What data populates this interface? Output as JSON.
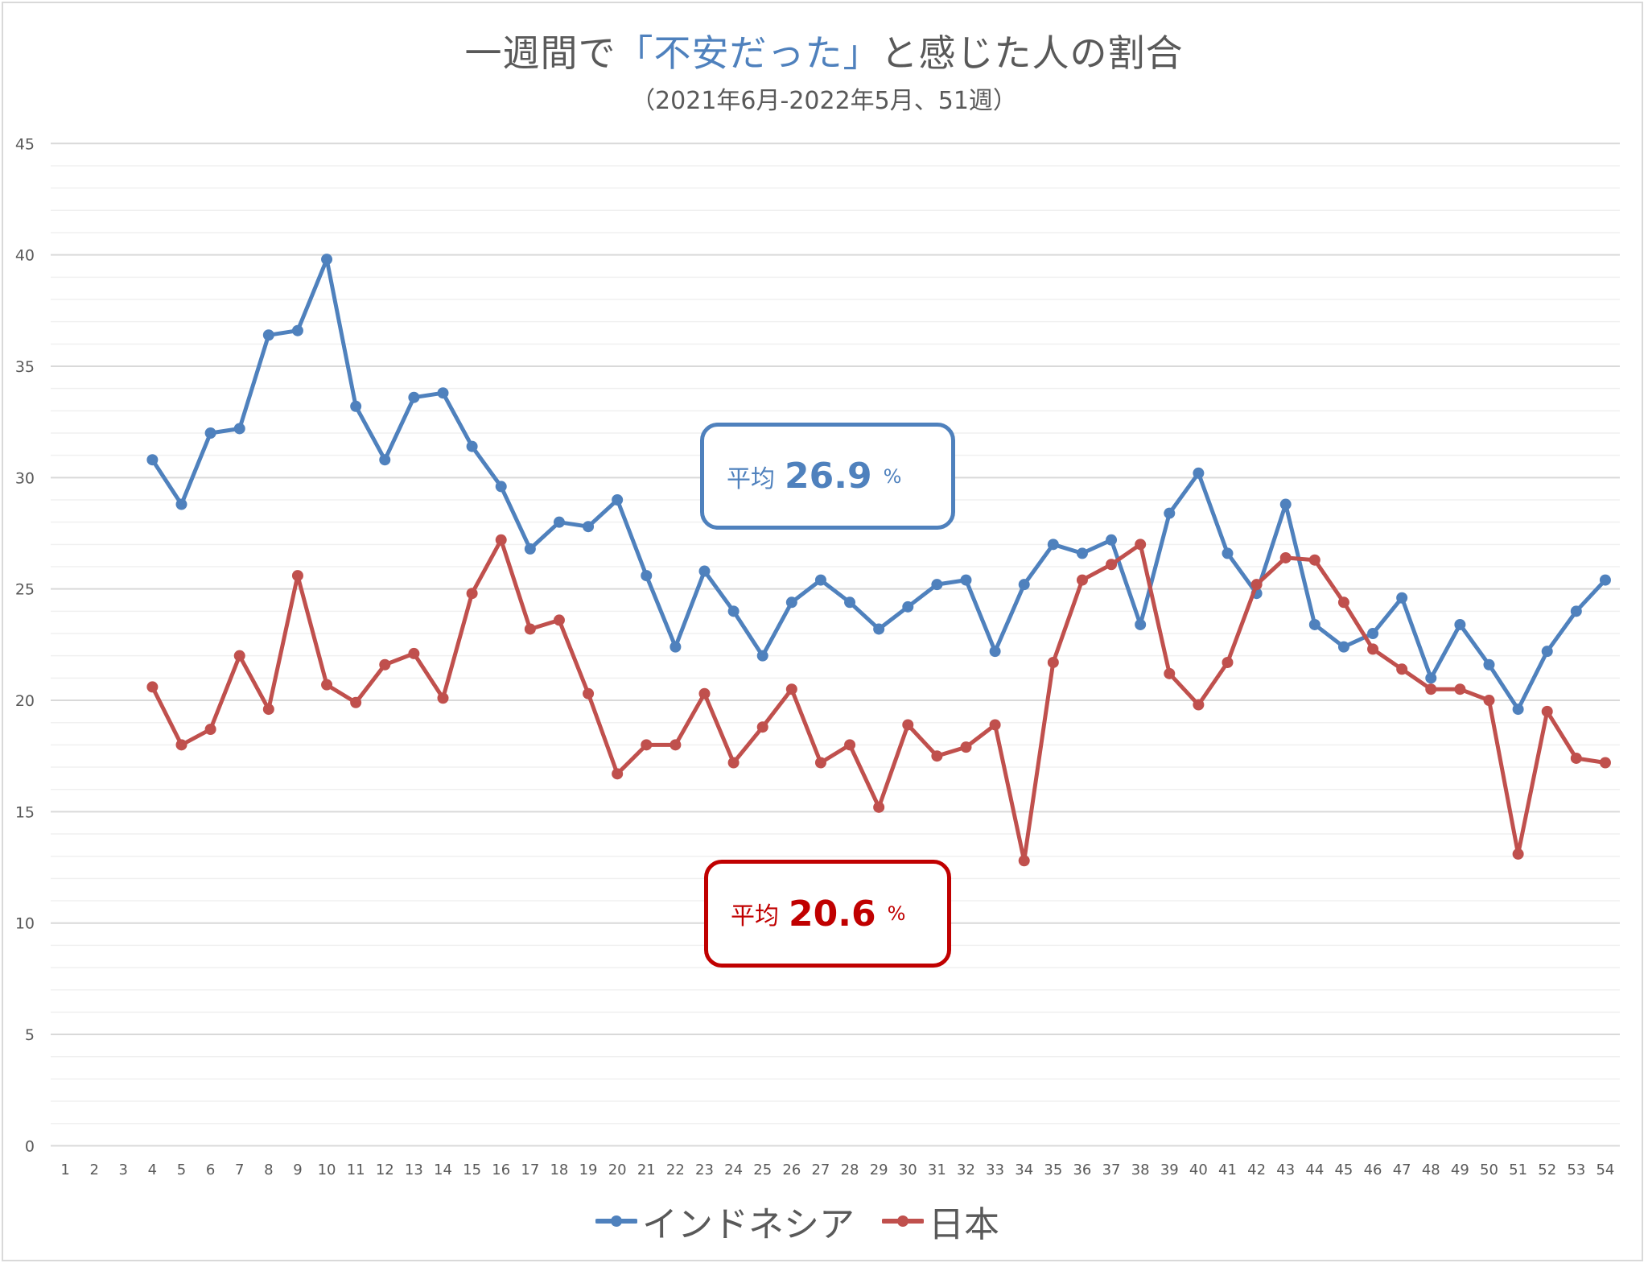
{
  "chart_data": {
    "type": "line",
    "title": {
      "prefix": "一週間で",
      "highlight": "「不安だった」",
      "suffix": "と感じた人の割合"
    },
    "subtitle": "（2021年6月-2022年5月、51週）",
    "xlabel": "",
    "ylabel": "",
    "ylim": [
      0,
      45
    ],
    "y_ticks": [
      "0",
      "5",
      "10",
      "15",
      "20",
      "25",
      "30",
      "35",
      "40",
      "45"
    ],
    "y_tick_values": [
      0,
      5,
      10,
      15,
      20,
      25,
      30,
      35,
      40,
      45
    ],
    "minor_grid_step": 1,
    "grid": true,
    "categories": [
      "1",
      "2",
      "3",
      "4",
      "5",
      "6",
      "7",
      "8",
      "9",
      "10",
      "11",
      "12",
      "13",
      "14",
      "15",
      "16",
      "17",
      "18",
      "19",
      "20",
      "21",
      "22",
      "23",
      "24",
      "25",
      "26",
      "27",
      "28",
      "29",
      "30",
      "31",
      "32",
      "33",
      "34",
      "35",
      "36",
      "37",
      "38",
      "39",
      "40",
      "41",
      "42",
      "43",
      "44",
      "45",
      "46",
      "47",
      "48",
      "49",
      "50",
      "51",
      "52",
      "53",
      "54"
    ],
    "series": [
      {
        "name": "インドネシア",
        "color": "#4f81bd",
        "values": [
          null,
          null,
          null,
          30.8,
          28.8,
          32.0,
          32.2,
          36.4,
          36.6,
          39.8,
          33.2,
          30.8,
          33.6,
          33.8,
          31.4,
          29.6,
          26.8,
          28.0,
          27.8,
          29.0,
          25.6,
          22.4,
          25.8,
          24.0,
          22.0,
          24.4,
          25.4,
          24.4,
          23.2,
          24.2,
          25.2,
          25.4,
          22.2,
          25.2,
          27.0,
          26.6,
          27.2,
          23.4,
          28.4,
          30.2,
          26.6,
          24.8,
          28.8,
          23.4,
          22.4,
          23.0,
          24.6,
          21.0,
          23.4,
          21.6,
          19.6,
          22.2,
          24.0,
          25.4
        ]
      },
      {
        "name": "日本",
        "color": "#c0504d",
        "values": [
          null,
          null,
          null,
          20.6,
          18.0,
          18.7,
          22.0,
          19.6,
          25.6,
          20.7,
          19.9,
          21.6,
          22.1,
          20.1,
          24.8,
          27.2,
          23.2,
          23.6,
          20.3,
          16.7,
          18.0,
          18.0,
          20.3,
          17.2,
          18.8,
          20.5,
          17.2,
          18.0,
          15.2,
          18.9,
          17.5,
          17.9,
          18.9,
          12.8,
          21.7,
          25.4,
          26.1,
          27.0,
          21.2,
          19.8,
          21.7,
          25.2,
          26.4,
          26.3,
          24.4,
          22.3,
          21.4,
          20.5,
          20.5,
          20.0,
          13.1,
          19.5,
          17.4,
          17.2
        ]
      }
    ],
    "legend_position": "bottom",
    "annotations": [
      {
        "series": "インドネシア",
        "label": "平均",
        "value": "26.9",
        "unit": "%",
        "color": "#4f81bd"
      },
      {
        "series": "日本",
        "label": "平均",
        "value": "20.6",
        "unit": "%",
        "color": "#c00000"
      }
    ]
  }
}
